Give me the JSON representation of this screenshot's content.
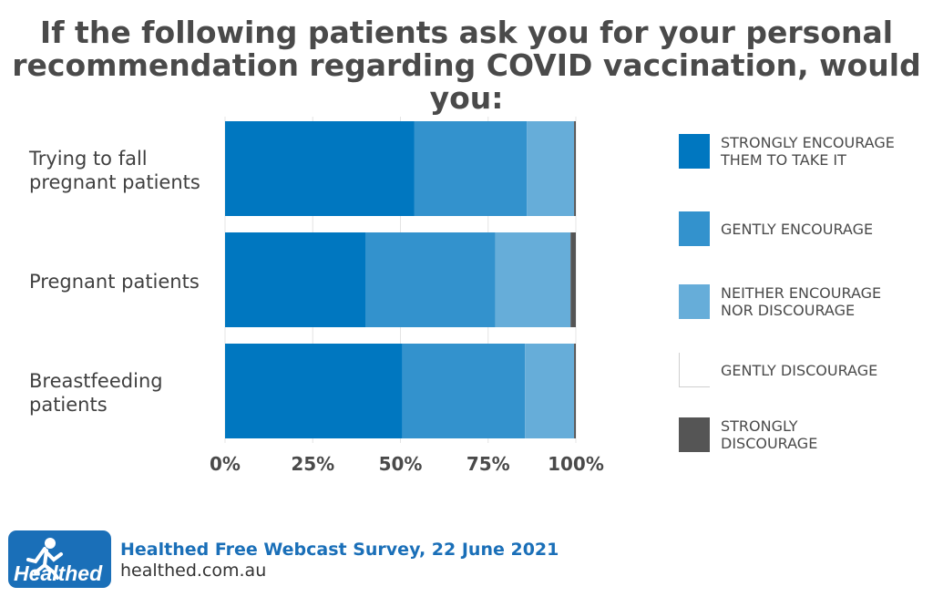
{
  "title_line1": "If the following patients ask you for your personal",
  "title_line2": "recommendation regarding COVID vaccination, would you:",
  "chart_data": {
    "type": "bar",
    "orientation": "horizontal",
    "stacked": true,
    "categories": [
      "Trying to fall pregnant patients",
      "Pregnant patients",
      "Breastfeeding patients"
    ],
    "category_lines": [
      [
        "Trying to fall",
        "pregnant patients"
      ],
      [
        "Pregnant patients"
      ],
      [
        "Breastfeeding",
        "patients"
      ]
    ],
    "series": [
      {
        "name": "STRONGLY ENCOURAGE THEM TO TAKE IT",
        "lines": [
          "STRONGLY ENCOURAGE",
          "THEM TO TAKE IT"
        ],
        "color": "#0077c0",
        "values": [
          54,
          40,
          50.5
        ]
      },
      {
        "name": "GENTLY ENCOURAGE",
        "lines": [
          "GENTLY ENCOURAGE"
        ],
        "color": "#3392cd",
        "values": [
          32,
          37,
          35
        ]
      },
      {
        "name": "NEITHER ENCOURAGE NOR DISCOURAGE",
        "lines": [
          "NEITHER ENCOURAGE",
          "NOR DISCOURAGE"
        ],
        "color": "#66add9",
        "values": [
          13.5,
          21.5,
          14
        ]
      },
      {
        "name": "GENTLY DISCOURAGE",
        "lines": [
          "GENTLY DISCOURAGE"
        ],
        "color": "#ffffff",
        "values": [
          0,
          0,
          0
        ]
      },
      {
        "name": "STRONGLY DISCOURAGE",
        "lines": [
          "STRONGLY",
          "DISCOURAGE"
        ],
        "color": "#555555",
        "values": [
          0.5,
          1.5,
          0.5
        ]
      }
    ],
    "xlim": [
      0,
      100
    ],
    "xticks": [
      "0%",
      "25%",
      "50%",
      "75%",
      "100%"
    ],
    "grid": true,
    "legend_position": "right"
  },
  "footer": {
    "logo_text": "Healthed",
    "source": "Healthed Free Webcast Survey, 22 June 2021",
    "url": "healthed.com.au"
  }
}
